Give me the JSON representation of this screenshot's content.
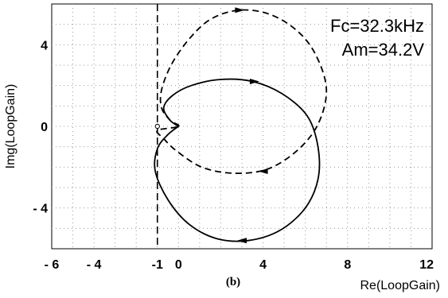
{
  "chart_data": {
    "type": "line",
    "xlabel": "Re(LoopGain)",
    "ylabel": "Img(LoopGain)",
    "caption": "(b)",
    "xlim": [
      -6,
      12
    ],
    "ylim": [
      -6,
      6
    ],
    "x_ticks": [
      {
        "value": -6,
        "label": "- 6"
      },
      {
        "value": -4,
        "label": "- 4"
      },
      {
        "value": -1,
        "label": "-1"
      },
      {
        "value": 0,
        "label": "0"
      },
      {
        "value": 4,
        "label": "4"
      },
      {
        "value": 8,
        "label": "8"
      },
      {
        "value": 12,
        "label": "12"
      }
    ],
    "y_ticks": [
      {
        "value": 4,
        "label": "4"
      },
      {
        "value": 0,
        "label": "0"
      },
      {
        "value": -4,
        "label": "- 4"
      }
    ],
    "grid": true,
    "annotations": [
      {
        "text": "Fc=32.3kHz"
      },
      {
        "text": "Am=34.2V"
      }
    ],
    "critical_point": {
      "x": -1,
      "y": 0
    },
    "reference_line": {
      "x": -1,
      "style": "dashed"
    },
    "series": [
      {
        "style": "dashed",
        "points": [
          [
            0,
            0
          ],
          [
            -0.4,
            0.3
          ],
          [
            -0.8,
            0.9
          ],
          [
            -0.8,
            1.8
          ],
          [
            -0.3,
            3.1
          ],
          [
            0.6,
            4.4
          ],
          [
            1.6,
            5.3
          ],
          [
            2.9,
            5.7
          ],
          [
            4.3,
            5.5
          ],
          [
            5.6,
            4.7
          ],
          [
            6.5,
            3.5
          ],
          [
            7.0,
            1.8
          ],
          [
            6.6,
            0.1
          ],
          [
            5.6,
            -1.2
          ],
          [
            4.2,
            -2.1
          ],
          [
            2.6,
            -2.3
          ],
          [
            1.1,
            -2.0
          ],
          [
            -0.1,
            -1.2
          ],
          [
            -0.7,
            -0.6
          ],
          [
            -1.0,
            -0.2
          ]
        ]
      },
      {
        "style": "solid",
        "points": [
          [
            0,
            0
          ],
          [
            -0.4,
            0.3
          ],
          [
            -0.7,
            0.9
          ],
          [
            -0.3,
            1.5
          ],
          [
            0.6,
            2.0
          ],
          [
            2.0,
            2.3
          ],
          [
            3.5,
            2.2
          ],
          [
            4.9,
            1.6
          ],
          [
            6.1,
            0.5
          ],
          [
            6.6,
            -1.0
          ],
          [
            6.6,
            -2.6
          ],
          [
            6.0,
            -4.0
          ],
          [
            4.8,
            -5.1
          ],
          [
            3.3,
            -5.6
          ],
          [
            1.8,
            -5.5
          ],
          [
            0.5,
            -4.8
          ],
          [
            -0.5,
            -3.6
          ],
          [
            -1.1,
            -2.2
          ],
          [
            -1.0,
            -1.1
          ],
          [
            -0.5,
            -0.4
          ],
          [
            0,
            0
          ]
        ]
      }
    ]
  }
}
